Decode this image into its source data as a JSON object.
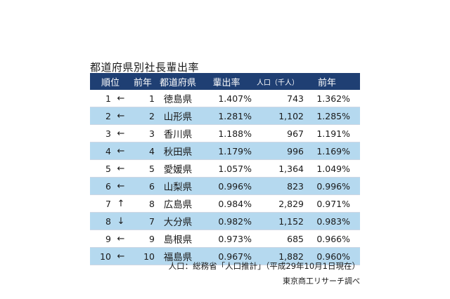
{
  "title": "都道府県別社長輩出率",
  "headers": {
    "rank": "順位",
    "prev": "前年",
    "pref": "都道府県",
    "ratio": "輩出率",
    "population": "人口（千人）",
    "last_year": "前年"
  },
  "rows": [
    {
      "rank": "1",
      "arrow": "←",
      "prev": "1",
      "pref": "徳島県",
      "ratio": "1.407%",
      "population": "743",
      "last_year": "1.362%"
    },
    {
      "rank": "2",
      "arrow": "←",
      "prev": "2",
      "pref": "山形県",
      "ratio": "1.281%",
      "population": "1,102",
      "last_year": "1.285%"
    },
    {
      "rank": "3",
      "arrow": "←",
      "prev": "3",
      "pref": "香川県",
      "ratio": "1.188%",
      "population": "967",
      "last_year": "1.191%"
    },
    {
      "rank": "4",
      "arrow": "←",
      "prev": "4",
      "pref": "秋田県",
      "ratio": "1.179%",
      "population": "996",
      "last_year": "1.169%"
    },
    {
      "rank": "5",
      "arrow": "←",
      "prev": "5",
      "pref": "愛媛県",
      "ratio": "1.057%",
      "population": "1,364",
      "last_year": "1.049%"
    },
    {
      "rank": "6",
      "arrow": "←",
      "prev": "6",
      "pref": "山梨県",
      "ratio": "0.996%",
      "population": "823",
      "last_year": "0.996%"
    },
    {
      "rank": "7",
      "arrow": "↑",
      "prev": "8",
      "pref": "広島県",
      "ratio": "0.984%",
      "population": "2,829",
      "last_year": "0.971%"
    },
    {
      "rank": "8",
      "arrow": "↓",
      "prev": "7",
      "pref": "大分県",
      "ratio": "0.982%",
      "population": "1,152",
      "last_year": "0.983%"
    },
    {
      "rank": "9",
      "arrow": "←",
      "prev": "9",
      "pref": "島根県",
      "ratio": "0.973%",
      "population": "685",
      "last_year": "0.966%"
    },
    {
      "rank": "10",
      "arrow": "←",
      "prev": "10",
      "pref": "福島県",
      "ratio": "0.967%",
      "population": "1,882",
      "last_year": "0.960%"
    }
  ],
  "notes": {
    "population_source": "人口：総務省「人口推計」（平成29年10月1日現在）",
    "credit": "東京商工リサーチ調べ"
  },
  "colors": {
    "header_bg": "#1f3f73",
    "header_text": "#ffffff",
    "alt_row_bg": "#b5d9ef"
  }
}
